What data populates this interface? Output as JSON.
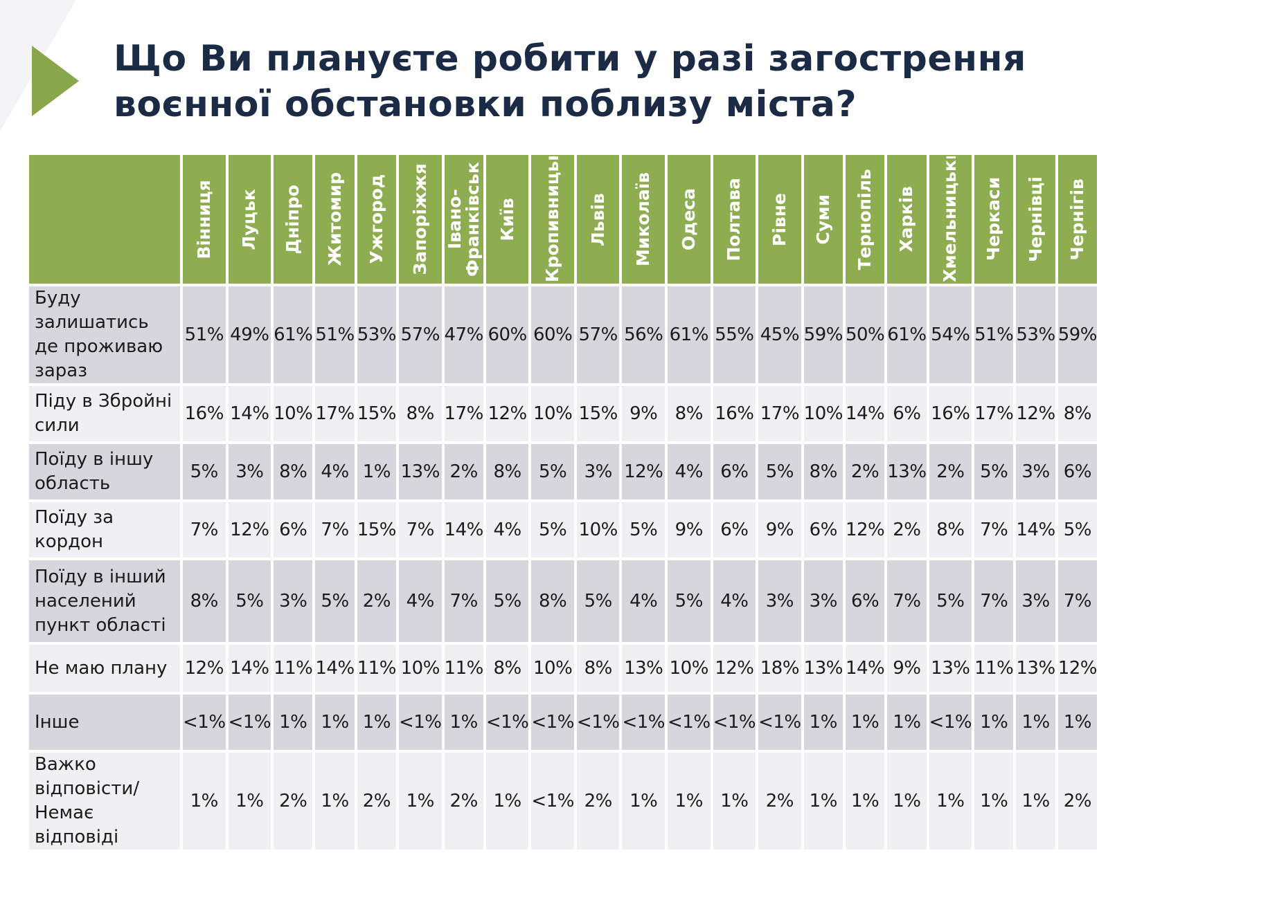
{
  "title": "Що Ви плануєте робити у разі загострення воєнної обстановки поблизу міста?",
  "colors": {
    "header_green": "#8eac50",
    "arrow_green": "#8aa64a",
    "row_dark": "#d6d6dc",
    "row_light": "#f0f0f3",
    "title": "#1b2a45"
  },
  "icons": {
    "title_arrow": "right-triangle-arrow-icon"
  },
  "cities": [
    "Вінниця",
    "Луцьк",
    "Дніпро",
    "Житомир",
    "Ужгород",
    "Запоріжжя",
    "Івано-Франківськ",
    "Київ",
    "Кропивницький",
    "Львів",
    "Миколаїв",
    "Одеса",
    "Полтава",
    "Рівне",
    "Суми",
    "Тернопіль",
    "Харків",
    "Хмельницький",
    "Черкаси",
    "Чернівці",
    "Чернігів"
  ],
  "rows": [
    {
      "label": "Буду залишатись де проживаю зараз",
      "values": [
        "51%",
        "49%",
        "61%",
        "51%",
        "53%",
        "57%",
        "47%",
        "60%",
        "60%",
        "57%",
        "56%",
        "61%",
        "55%",
        "45%",
        "59%",
        "50%",
        "61%",
        "54%",
        "51%",
        "53%",
        "59%"
      ]
    },
    {
      "label": "Піду в Збройні сили",
      "values": [
        "16%",
        "14%",
        "10%",
        "17%",
        "15%",
        "8%",
        "17%",
        "12%",
        "10%",
        "15%",
        "9%",
        "8%",
        "16%",
        "17%",
        "10%",
        "14%",
        "6%",
        "16%",
        "17%",
        "12%",
        "8%"
      ]
    },
    {
      "label": "Поїду в іншу область",
      "values": [
        "5%",
        "3%",
        "8%",
        "4%",
        "1%",
        "13%",
        "2%",
        "8%",
        "5%",
        "3%",
        "12%",
        "4%",
        "6%",
        "5%",
        "8%",
        "2%",
        "13%",
        "2%",
        "5%",
        "3%",
        "6%"
      ]
    },
    {
      "label": "Поїду за кордон",
      "values": [
        "7%",
        "12%",
        "6%",
        "7%",
        "15%",
        "7%",
        "14%",
        "4%",
        "5%",
        "10%",
        "5%",
        "9%",
        "6%",
        "9%",
        "6%",
        "12%",
        "2%",
        "8%",
        "7%",
        "14%",
        "5%"
      ]
    },
    {
      "label": "Поїду в інший населений пункт області",
      "values": [
        "8%",
        "5%",
        "3%",
        "5%",
        "2%",
        "4%",
        "7%",
        "5%",
        "8%",
        "5%",
        "4%",
        "5%",
        "4%",
        "3%",
        "3%",
        "6%",
        "7%",
        "5%",
        "7%",
        "3%",
        "7%"
      ]
    },
    {
      "label": "Не маю плану",
      "values": [
        "12%",
        "14%",
        "11%",
        "14%",
        "11%",
        "10%",
        "11%",
        "8%",
        "10%",
        "8%",
        "13%",
        "10%",
        "12%",
        "18%",
        "13%",
        "14%",
        "9%",
        "13%",
        "11%",
        "13%",
        "12%"
      ]
    },
    {
      "label": "Інше",
      "values": [
        "<1%",
        "<1%",
        "1%",
        "1%",
        "1%",
        "<1%",
        "1%",
        "<1%",
        "<1%",
        "<1%",
        "<1%",
        "<1%",
        "<1%",
        "<1%",
        "1%",
        "1%",
        "1%",
        "<1%",
        "1%",
        "1%",
        "1%"
      ]
    },
    {
      "label": "Важко відповісти/Немає відповіді",
      "values": [
        "1%",
        "1%",
        "2%",
        "1%",
        "2%",
        "1%",
        "2%",
        "1%",
        "<1%",
        "2%",
        "1%",
        "1%",
        "1%",
        "2%",
        "1%",
        "1%",
        "1%",
        "1%",
        "1%",
        "1%",
        "2%"
      ]
    }
  ]
}
